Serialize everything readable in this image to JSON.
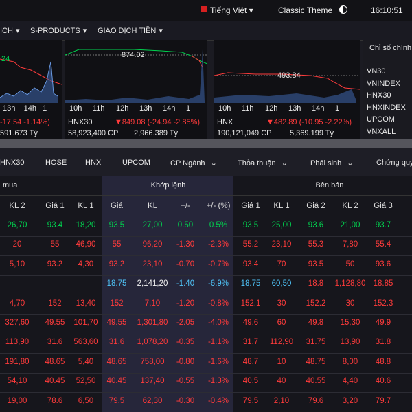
{
  "top_bar": {
    "language": "Tiếng Việt",
    "theme": "Classic Theme",
    "time": "16:10:51"
  },
  "nav": [
    "ỊCH",
    "S-PRODUCTS",
    "GIAO DỊCH TIỀN"
  ],
  "charts": [
    {
      "value": "24",
      "times": [
        "13h",
        "14h",
        "1"
      ],
      "change": "-17.54 -1.14%)",
      "value_traded": "591.673 Tỷ"
    },
    {
      "value": "874.02",
      "times": [
        "10h",
        "11h",
        "12h",
        "13h",
        "14h",
        "1"
      ],
      "name": "HNX30",
      "change": "▼849.08 (-24.94 -2.85%)",
      "volume": "58,923,400 CP",
      "value_traded": "2,966.389 Tỷ"
    },
    {
      "value": "493.84",
      "times": [
        "10h",
        "11h",
        "12h",
        "13h",
        "14h",
        "1"
      ],
      "name": "HNX",
      "change": "▼482.89 (-10.95 -2.22%)",
      "volume": "190,121,049 CP",
      "value_traded": "5,369.199 Tỷ"
    }
  ],
  "index_list": {
    "title": "Chỉ số chính",
    "items": [
      "VN30",
      "VNINDEX",
      "HNX30",
      "HNXINDEX",
      "UPCOM",
      "VNXALL"
    ]
  },
  "tabs": [
    {
      "label": "HNX30"
    },
    {
      "label": "HOSE"
    },
    {
      "label": "HNX"
    },
    {
      "label": "UPCOM"
    },
    {
      "label": "CP Ngành",
      "dropdown": true
    },
    {
      "label": "Thỏa thuận",
      "dropdown": true
    },
    {
      "label": "Phái sinh",
      "dropdown": true
    },
    {
      "label": "Chứng quy"
    }
  ],
  "table": {
    "groups": [
      "mua",
      "Khớp lệnh",
      "Bên bán"
    ],
    "columns": [
      "KL 2",
      "Giá 1",
      "KL 1",
      "Giá",
      "KL",
      "+/-",
      "+/- (%)",
      "Giá 1",
      "KL 1",
      "Giá 2",
      "KL 2",
      "Giá 3"
    ],
    "rows": [
      {
        "tone": "up",
        "cells": [
          "26,70",
          "93.4",
          "18,20",
          "93.5",
          "27,00",
          "0.50",
          "0.5%",
          "93.5",
          "25,00",
          "93.6",
          "21,00",
          "93.7"
        ]
      },
      {
        "tone": "down",
        "cells": [
          "20",
          "55",
          "46,90",
          "55",
          "96,20",
          "-1.30",
          "-2.3%",
          "55.2",
          "23,10",
          "55.3",
          "7,80",
          "55.4"
        ]
      },
      {
        "tone": "down",
        "cells": [
          "5,10",
          "93.2",
          "4,30",
          "93.2",
          "23,10",
          "-0.70",
          "-0.7%",
          "93.4",
          "70",
          "93.5",
          "50",
          "93.6"
        ]
      },
      {
        "tone": "floor",
        "cells": [
          null,
          null,
          null,
          "18.75",
          "2,141,20",
          "-1.40",
          "-6.9%",
          "18.75",
          "60,50",
          "18.8",
          "1,128,80",
          "18.85"
        ]
      },
      {
        "tone": "down",
        "cells": [
          "4,70",
          "152",
          "13,40",
          "152",
          "7,10",
          "-1.20",
          "-0.8%",
          "152.1",
          "30",
          "152.2",
          "30",
          "152.3"
        ]
      },
      {
        "tone": "down",
        "cells": [
          "327,60",
          "49.55",
          "101,70",
          "49.55",
          "1,301,80",
          "-2.05",
          "-4.0%",
          "49.6",
          "60",
          "49.8",
          "15,30",
          "49.9"
        ]
      },
      {
        "tone": "down",
        "cells": [
          "113,90",
          "31.6",
          "563,60",
          "31.6",
          "1,078,20",
          "-0.35",
          "-1.1%",
          "31.7",
          "112,90",
          "31.75",
          "13,90",
          "31.8"
        ]
      },
      {
        "tone": "down",
        "cells": [
          "191,80",
          "48.65",
          "5,40",
          "48.65",
          "758,00",
          "-0.80",
          "-1.6%",
          "48.7",
          "10",
          "48.75",
          "8,00",
          "48.8"
        ]
      },
      {
        "tone": "down",
        "cells": [
          "54,10",
          "40.45",
          "52,50",
          "40.45",
          "137,40",
          "-0.55",
          "-1.3%",
          "40.5",
          "40",
          "40.55",
          "4,40",
          "40.6"
        ]
      },
      {
        "tone": "down",
        "cells": [
          "19,00",
          "78.6",
          "6,50",
          "79.5",
          "62,30",
          "-0.30",
          "-0.4%",
          "79.5",
          "2,10",
          "79.6",
          "3,20",
          "79.7"
        ]
      }
    ]
  }
}
